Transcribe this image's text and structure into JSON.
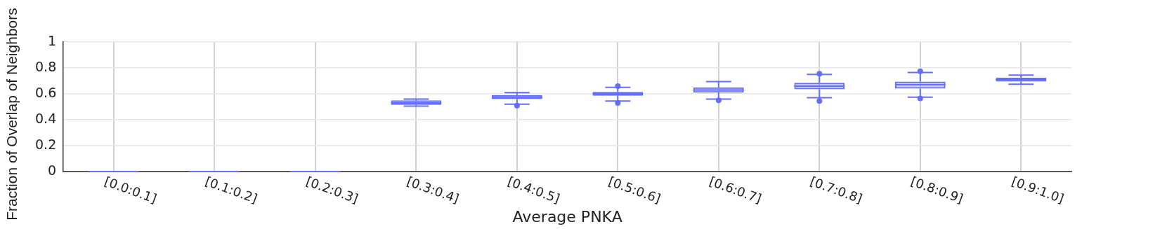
{
  "chart_data": {
    "type": "box",
    "xlabel": "Average PNKA",
    "ylabel": "Fraction of Overlap of Neighbors",
    "categories": [
      "[0.0:0.1]",
      "[0.1:0.2]",
      "[0.2:0.3]",
      "[0.3:0.4]",
      "[0.4:0.5]",
      "[0.5:0.6]",
      "[0.6:0.7]",
      "[0.7:0.8]",
      "[0.8:0.9]",
      "[0.9:1.0]"
    ],
    "series": [
      {
        "color": "#636efa",
        "boxes": [
          {
            "low": 0,
            "q1": 0,
            "median": 0,
            "q3": 0,
            "high": 0
          },
          {
            "low": 0,
            "q1": 0,
            "median": 0,
            "q3": 0,
            "high": 0
          },
          {
            "low": 0,
            "q1": 0,
            "median": 0,
            "q3": 0,
            "high": 0
          },
          {
            "low": 0.505,
            "q1": 0.515,
            "median": 0.53,
            "q3": 0.55,
            "high": 0.56
          },
          {
            "low": 0.52,
            "q1": 0.56,
            "median": 0.575,
            "q3": 0.59,
            "high": 0.61,
            "outliers": [
              0.51
            ]
          },
          {
            "low": 0.545,
            "q1": 0.585,
            "median": 0.6,
            "q3": 0.615,
            "high": 0.65,
            "outliers": [
              0.53,
              0.66
            ]
          },
          {
            "low": 0.56,
            "q1": 0.61,
            "median": 0.63,
            "q3": 0.65,
            "high": 0.695,
            "outliers": [
              0.55
            ]
          },
          {
            "low": 0.57,
            "q1": 0.635,
            "median": 0.66,
            "q3": 0.685,
            "high": 0.75,
            "outliers": [
              0.545,
              0.755
            ]
          },
          {
            "low": 0.575,
            "q1": 0.64,
            "median": 0.67,
            "q3": 0.695,
            "high": 0.765,
            "outliers": [
              0.565,
              0.775
            ]
          },
          {
            "low": 0.675,
            "q1": 0.695,
            "median": 0.71,
            "q3": 0.725,
            "high": 0.745
          }
        ]
      }
    ],
    "ylim": [
      0,
      1
    ],
    "yticks": [
      0,
      0.2,
      0.4,
      0.6,
      0.8,
      1
    ],
    "grid": true,
    "legend": false
  }
}
